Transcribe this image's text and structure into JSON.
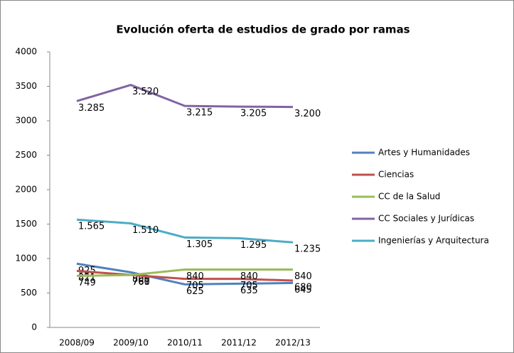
{
  "chart_data": {
    "type": "line",
    "title": "Evolución oferta de estudios de grado por ramas",
    "categories": [
      "2008/09",
      "2009/10",
      "2010/11",
      "2011/12",
      "2012/13"
    ],
    "series": [
      {
        "name": "Artes y Humanidades",
        "color": "#4f81bd",
        "values": [
          925,
          800,
          625,
          635,
          645
        ]
      },
      {
        "name": "Ciencias",
        "color": "#c0504d",
        "values": [
          821,
          761,
          705,
          705,
          680
        ]
      },
      {
        "name": "CC de la Salud",
        "color": "#9bbb59",
        "values": [
          749,
          760,
          840,
          840,
          840
        ]
      },
      {
        "name": "CC Sociales y Jurídicas",
        "color": "#8064a2",
        "values": [
          3285,
          3520,
          3215,
          3205,
          3200
        ],
        "value_labels": [
          "3.285",
          "3.520",
          "3.215",
          "3.205",
          "3.200"
        ]
      },
      {
        "name": "Ingenierías y Arquitectura",
        "color": "#4bacc6",
        "values": [
          1565,
          1510,
          1305,
          1295,
          1235
        ],
        "value_labels": [
          "1.565",
          "1.510",
          "1.305",
          "1.295",
          "1.235"
        ]
      }
    ],
    "ylim": [
      0,
      4000
    ],
    "yticks": [
      0,
      500,
      1000,
      1500,
      2000,
      2500,
      3000,
      3500,
      4000
    ],
    "grid": false,
    "legend": "right"
  }
}
